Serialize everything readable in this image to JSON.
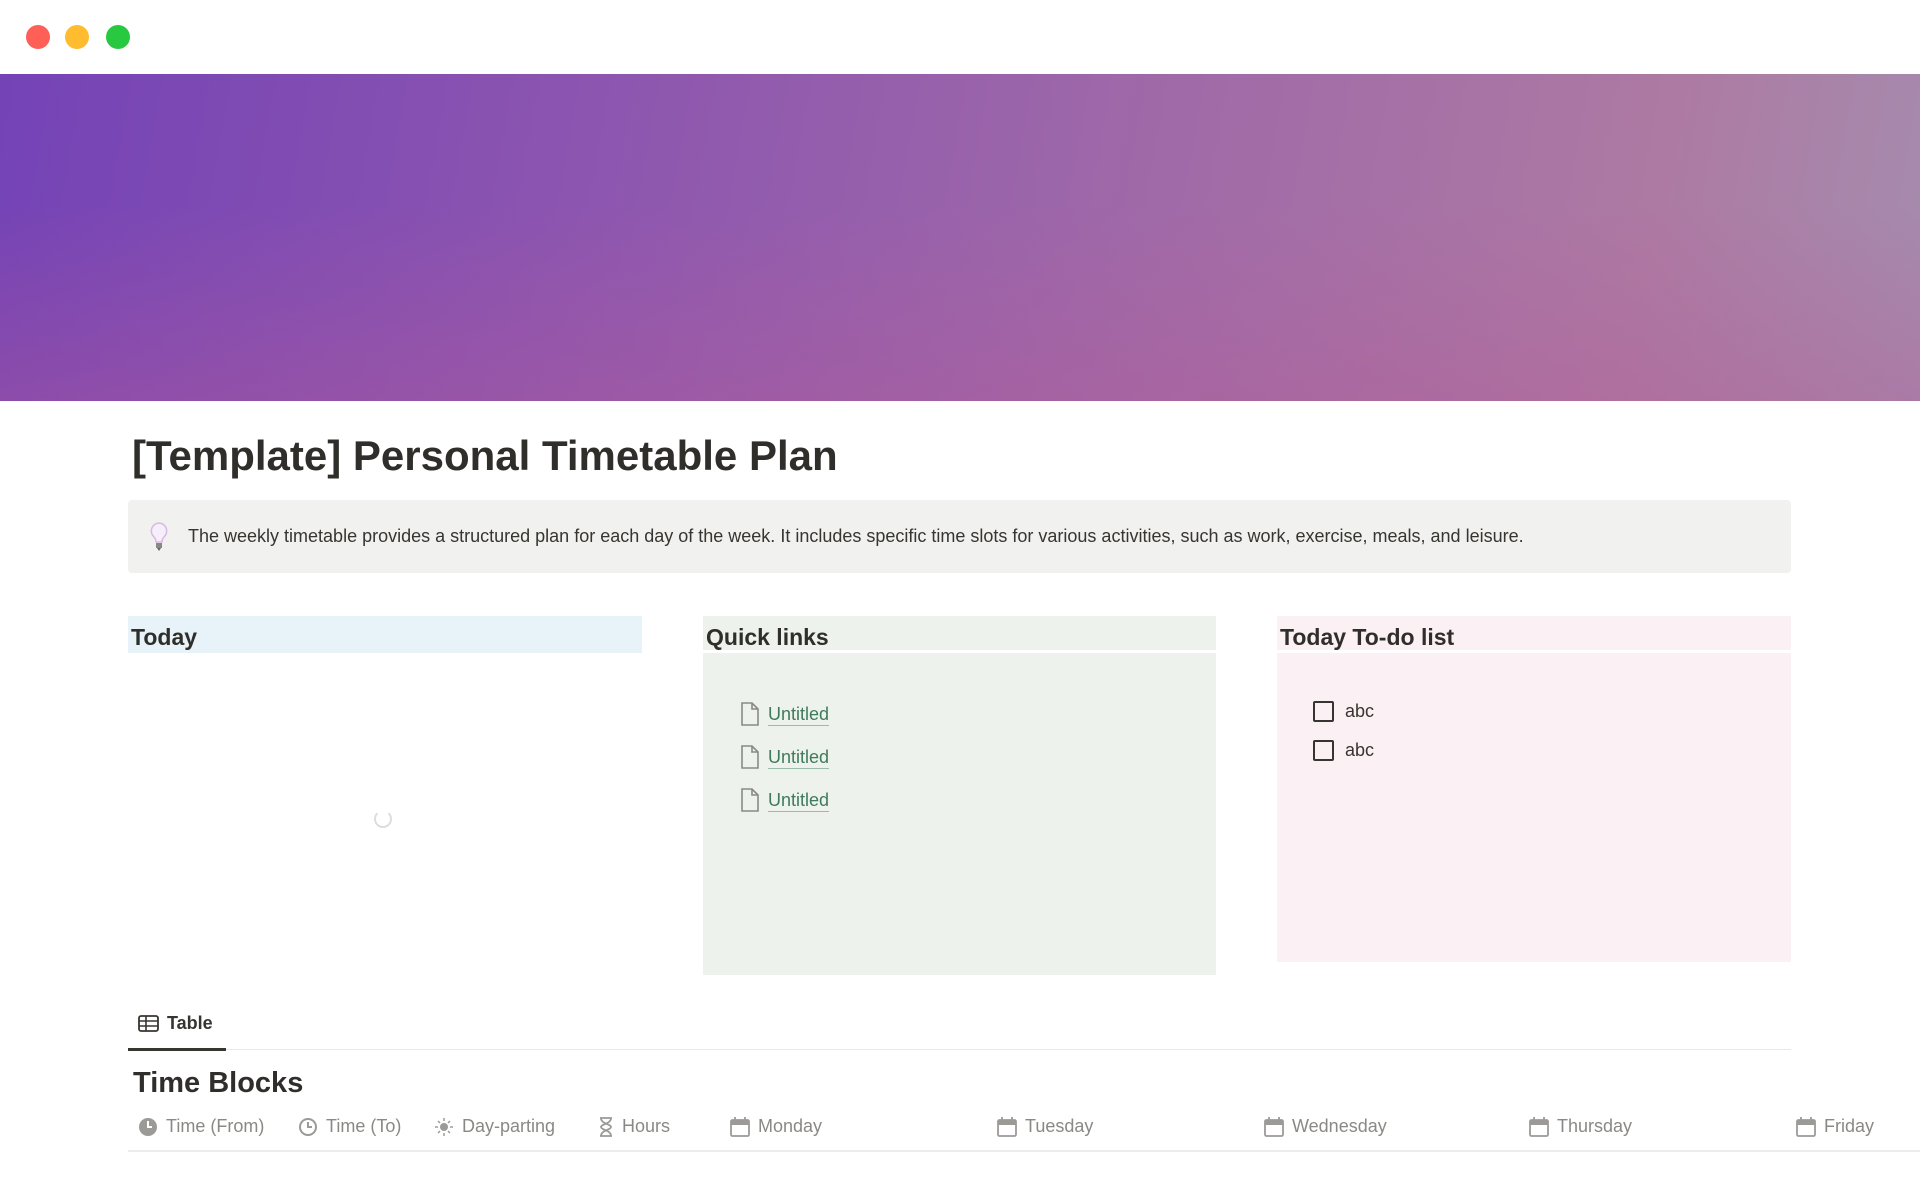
{
  "window": {
    "controls": [
      "close",
      "minimize",
      "maximize"
    ],
    "colors": {
      "close": "#fe5f57",
      "minimize": "#febc2e",
      "maximize": "#28c840"
    }
  },
  "page": {
    "title": "[Template] Personal Timetable Plan",
    "callout": {
      "icon": "lightbulb-icon",
      "text": "The weekly timetable provides a structured plan for each day of the week. It includes specific time slots for various activities, such as work, exercise, meals, and leisure."
    }
  },
  "columns": {
    "today": {
      "heading": "Today",
      "color": "#e7f3f8"
    },
    "quick_links": {
      "heading": "Quick links",
      "color": "#edf3ec",
      "links": [
        "Untitled",
        "Untitled",
        "Untitled"
      ]
    },
    "todo": {
      "heading": "Today To-do list",
      "color": "#fbf0f3",
      "items": [
        {
          "label": "abc",
          "checked": false
        },
        {
          "label": "abc",
          "checked": false
        }
      ]
    }
  },
  "database": {
    "view_tab": "Table",
    "title": "Time Blocks",
    "headers": [
      {
        "label": "Time (From)",
        "icon": "clock-filled-icon"
      },
      {
        "label": "Time (To)",
        "icon": "clock-icon"
      },
      {
        "label": "Day-parting",
        "icon": "sun-icon"
      },
      {
        "label": "Hours",
        "icon": "hourglass-icon"
      },
      {
        "label": "Monday",
        "icon": "calendar-icon"
      },
      {
        "label": "Tuesday",
        "icon": "calendar-icon"
      },
      {
        "label": "Wednesday",
        "icon": "calendar-icon"
      },
      {
        "label": "Thursday",
        "icon": "calendar-icon"
      },
      {
        "label": "Friday",
        "icon": "calendar-icon"
      }
    ]
  }
}
